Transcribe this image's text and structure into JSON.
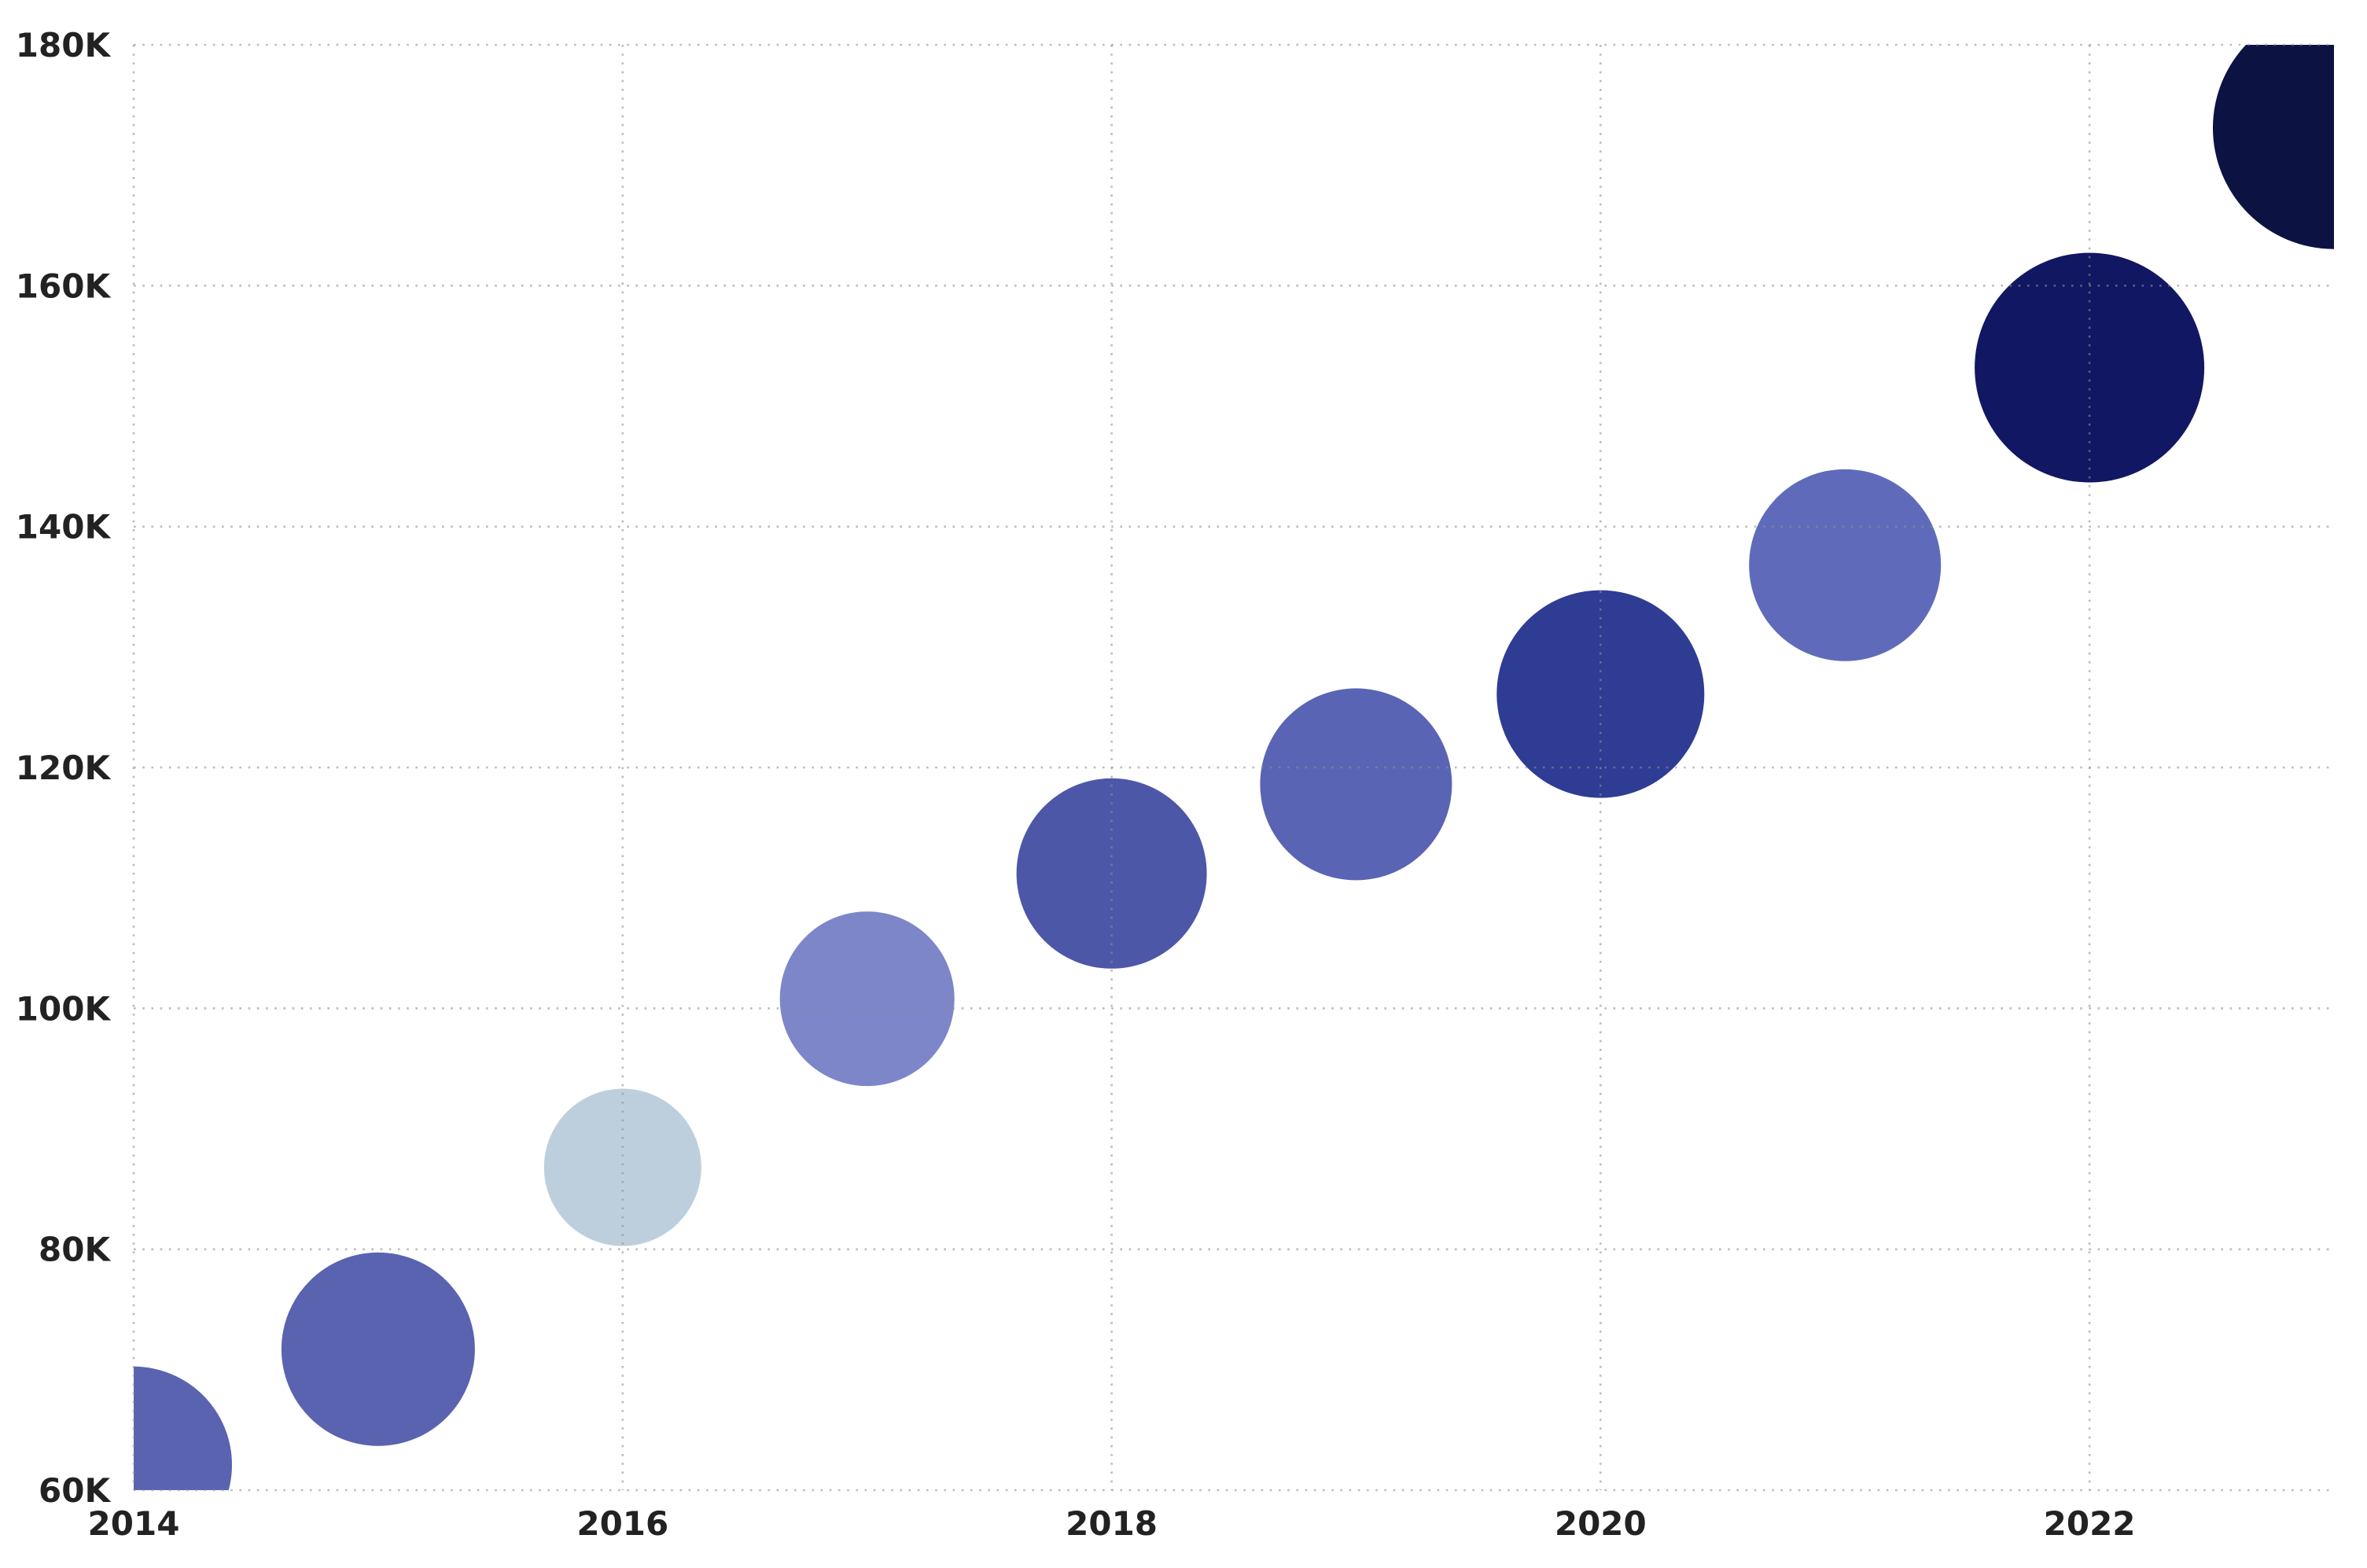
{
  "chart_data": {
    "type": "scatter",
    "subtype": "bubble-timeseries",
    "title": "",
    "xlabel": "",
    "ylabel": "",
    "units": "thousands (K)",
    "background_color": "#ffffff",
    "gridline_color": "#8f8f8f",
    "gridline_style": "dotted",
    "label_color": "#222222",
    "xlim": [
      2014,
      2023
    ],
    "ylim_k": [
      60,
      180
    ],
    "legend": "none",
    "x_ticks": [
      {
        "label": "2014",
        "year": 2014
      },
      {
        "label": "2016",
        "year": 2016
      },
      {
        "label": "2018",
        "year": 2018
      },
      {
        "label": "2020",
        "year": 2020
      },
      {
        "label": "2022",
        "year": 2022
      }
    ],
    "y_ticks": [
      {
        "label": "60K",
        "value_k": 60
      },
      {
        "label": "80K",
        "value_k": 80
      },
      {
        "label": "100K",
        "value_k": 100
      },
      {
        "label": "120K",
        "value_k": 120
      },
      {
        "label": "140K",
        "value_k": 140
      },
      {
        "label": "160K",
        "value_k": 160
      },
      {
        "label": "180K",
        "value_k": 180
      }
    ],
    "points": [
      {
        "year": 2014,
        "value_k": 62.1,
        "radius_px": 125,
        "color": "#5a63b0"
      },
      {
        "year": 2015,
        "value_k": 71.7,
        "radius_px": 123,
        "color": "#5a63b0"
      },
      {
        "year": 2016,
        "value_k": 86.8,
        "radius_px": 100,
        "color": "#bdcfdc"
      },
      {
        "year": 2017,
        "value_k": 100.8,
        "radius_px": 111,
        "color": "#7d86c9"
      },
      {
        "year": 2018,
        "value_k": 111.2,
        "radius_px": 121,
        "color": "#4d57a8"
      },
      {
        "year": 2019,
        "value_k": 118.6,
        "radius_px": 122,
        "color": "#5a64b4"
      },
      {
        "year": 2020,
        "value_k": 126.1,
        "radius_px": 132,
        "color": "#2e3c94"
      },
      {
        "year": 2021,
        "value_k": 136.8,
        "radius_px": 122,
        "color": "#5f6bba"
      },
      {
        "year": 2022,
        "value_k": 153.2,
        "radius_px": 146,
        "color": "#121763"
      },
      {
        "year": 2023,
        "value_k": 173.1,
        "radius_px": 154,
        "color": "#0c1342"
      }
    ]
  }
}
